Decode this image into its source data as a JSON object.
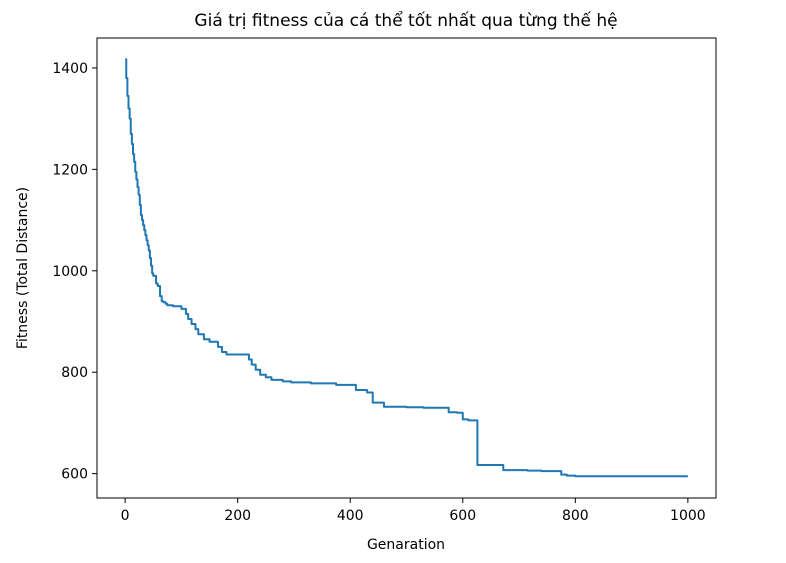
{
  "chart_data": {
    "type": "line",
    "title": "Giá trị fitness của cá thể tốt nhất qua từng thế hệ",
    "xlabel": "Genaration",
    "ylabel": "Fitness (Total Distance)",
    "xlim": [
      -50,
      1050
    ],
    "ylim": [
      552,
      1459
    ],
    "x_ticks": [
      0,
      200,
      400,
      600,
      800,
      1000
    ],
    "x_tick_labels": [
      "0",
      "200",
      "400",
      "600",
      "800",
      "1000"
    ],
    "y_ticks": [
      600,
      800,
      1000,
      1200,
      1400
    ],
    "y_tick_labels": [
      "600",
      "800",
      "1000",
      "1200",
      "1400"
    ],
    "grid": false,
    "series": [
      {
        "color": "#1f77b4",
        "x": [
          0,
          2,
          4,
          6,
          8,
          10,
          12,
          14,
          16,
          18,
          20,
          22,
          24,
          26,
          28,
          30,
          32,
          34,
          36,
          38,
          40,
          42,
          44,
          46,
          48,
          50,
          55,
          58,
          62,
          65,
          68,
          72,
          75,
          80,
          85,
          90,
          100,
          108,
          112,
          118,
          125,
          130,
          140,
          150,
          165,
          172,
          180,
          195,
          210,
          220,
          225,
          232,
          240,
          250,
          260,
          280,
          295,
          330,
          360,
          375,
          400,
          410,
          430,
          440,
          460,
          500,
          530,
          550,
          575,
          590,
          600,
          610,
          625,
          626,
          640,
          672,
          700,
          715,
          740,
          775,
          785,
          800,
          900,
          1000
        ],
        "y": [
          1417,
          1380,
          1345,
          1320,
          1300,
          1270,
          1250,
          1230,
          1215,
          1195,
          1180,
          1165,
          1150,
          1130,
          1110,
          1100,
          1090,
          1080,
          1070,
          1060,
          1050,
          1040,
          1025,
          1010,
          995,
          990,
          975,
          970,
          950,
          940,
          938,
          935,
          932,
          932,
          930,
          930,
          925,
          915,
          905,
          895,
          885,
          875,
          865,
          860,
          850,
          840,
          835,
          835,
          835,
          825,
          815,
          805,
          795,
          790,
          785,
          782,
          780,
          778,
          778,
          775,
          775,
          765,
          760,
          740,
          732,
          731,
          730,
          730,
          721,
          720,
          707,
          705,
          705,
          617,
          617,
          607,
          607,
          606,
          605,
          598,
          596,
          595,
          595,
          595
        ]
      }
    ]
  }
}
